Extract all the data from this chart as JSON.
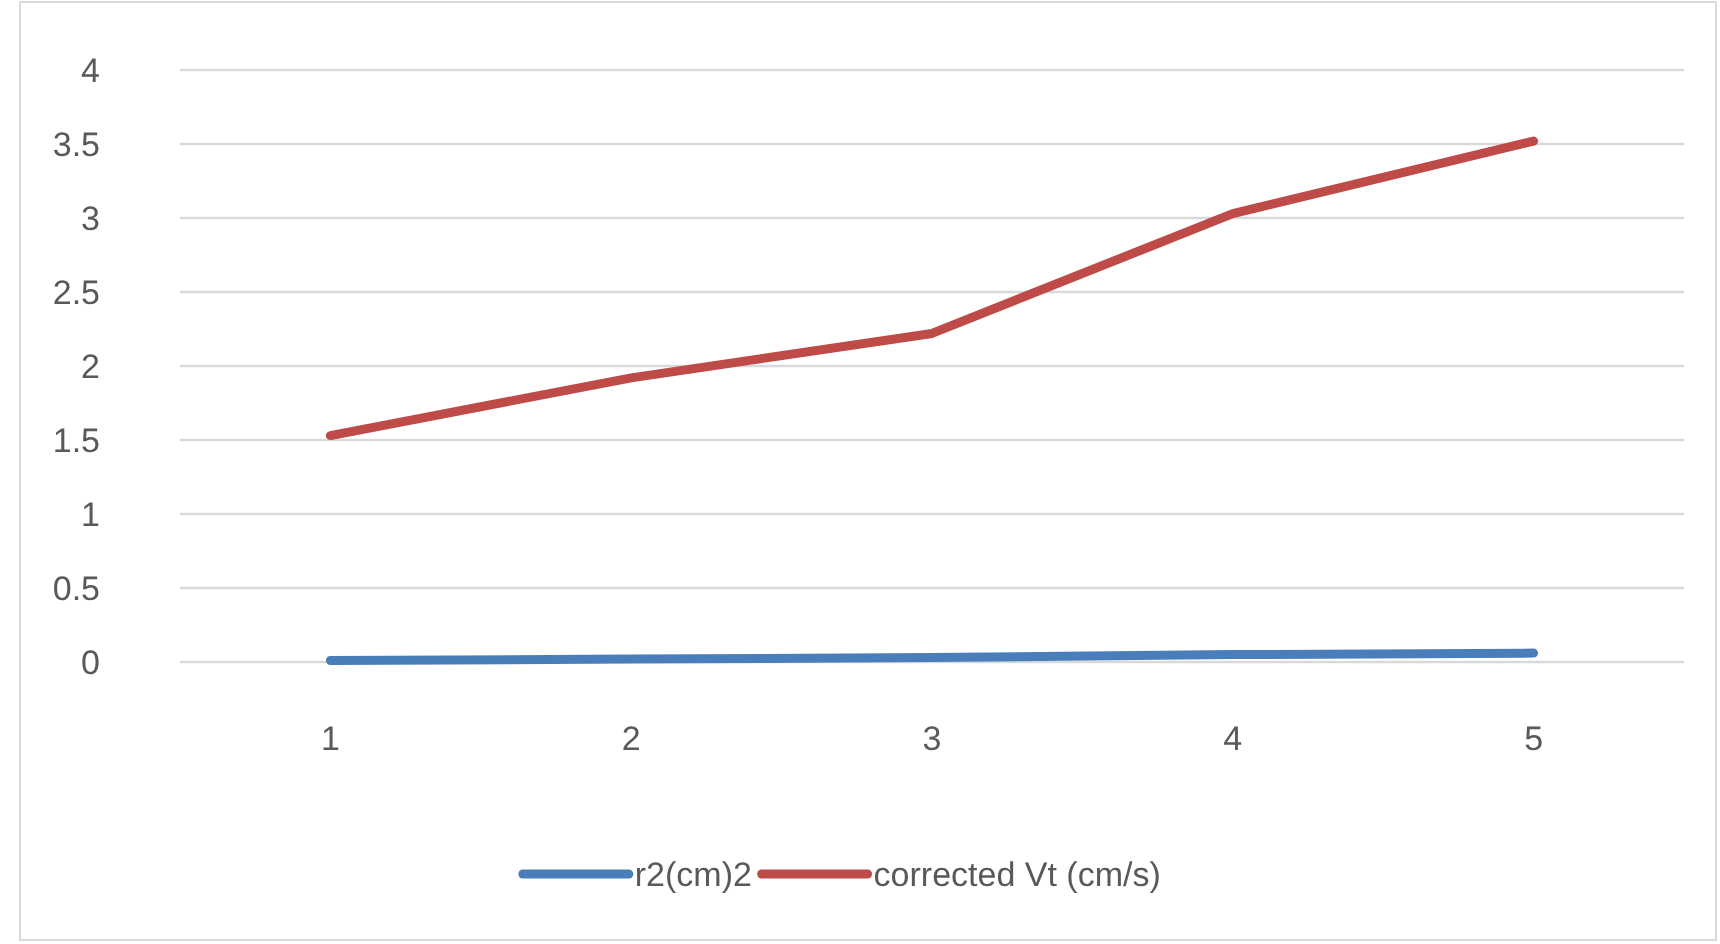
{
  "chart_data": {
    "type": "line",
    "categories": [
      "1",
      "2",
      "3",
      "4",
      "5"
    ],
    "series": [
      {
        "name": "r2(cm)2",
        "color": "#4a7ebb",
        "values": [
          0.01,
          0.02,
          0.03,
          0.05,
          0.06
        ]
      },
      {
        "name": "corrected Vt (cm/s)",
        "color": "#be4b48",
        "values": [
          1.53,
          1.92,
          2.22,
          3.03,
          3.52
        ]
      }
    ],
    "ylim": [
      0,
      4
    ],
    "yticks": [
      0,
      0.5,
      1,
      1.5,
      2,
      2.5,
      3,
      3.5,
      4
    ],
    "grid": "y",
    "legend": "bottom",
    "marker": "none",
    "line_style": "solid"
  }
}
